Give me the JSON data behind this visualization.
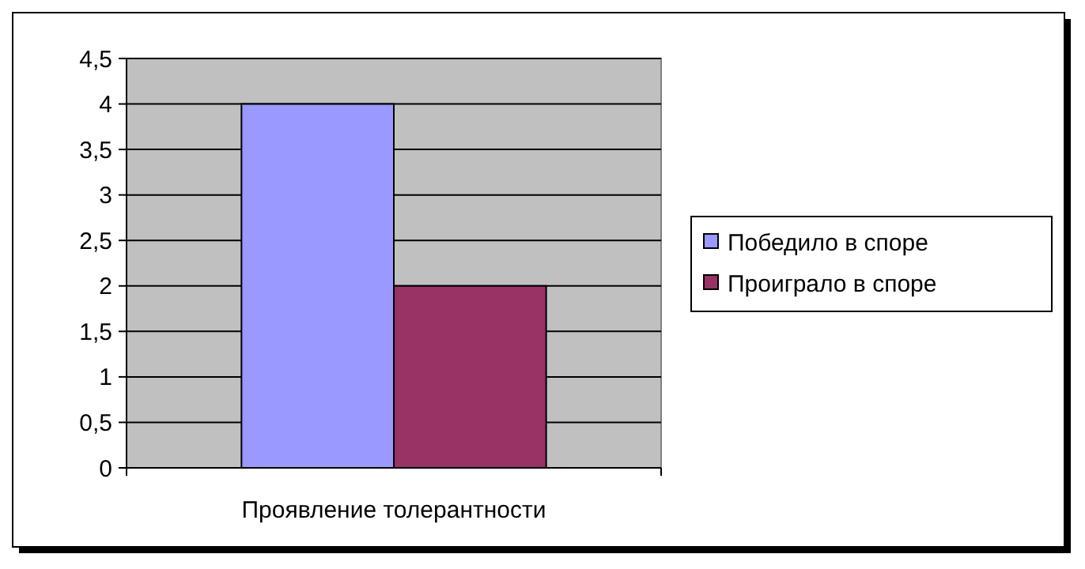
{
  "chart_data": {
    "type": "bar",
    "categories": [
      "Проявление толерантности"
    ],
    "series": [
      {
        "name": "Победило в споре",
        "color": "#9999ff",
        "values": [
          4
        ]
      },
      {
        "name": "Проиграло в споре",
        "color": "#993366",
        "values": [
          2
        ]
      }
    ],
    "ylim": [
      0,
      4.5
    ],
    "yticks": [
      0,
      {
        "value": 0.5,
        "label": "0,5"
      },
      1,
      {
        "value": 1.5,
        "label": "1,5"
      },
      2,
      {
        "value": 2.5,
        "label": "2,5"
      },
      3,
      {
        "value": 3.5,
        "label": "3,5"
      },
      4,
      {
        "value": 4.5,
        "label": "4,5"
      }
    ],
    "grid": "y",
    "legend": "right"
  }
}
